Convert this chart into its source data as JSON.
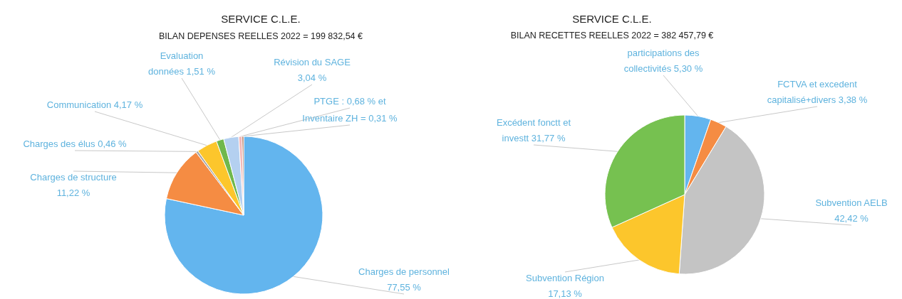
{
  "chart_data": [
    {
      "type": "pie",
      "title": "SERVICE C.L.E.",
      "subtitle": "BILAN DEPENSES REELLES 2022 = 199 832,54 €",
      "categories": [
        "Charges de personnel 77,55 %",
        "Charges de structure 11,22 %",
        "Charges des élus 0,46 %",
        "Communication 4,17 %",
        "Evaluation données 1,51 %",
        "Révision du SAGE 3,04 %",
        "PTGE : 0,68 % et",
        "Inventaire ZH = 0,31 %"
      ],
      "values": [
        77.55,
        11.22,
        0.46,
        4.17,
        1.51,
        3.04,
        0.68,
        0.31
      ],
      "colors": [
        "#63b5ee",
        "#f58c43",
        "#a5a5a5",
        "#fcc62c",
        "#70b84c",
        "#b4d0f0",
        "#f2b7b7",
        "#a0522d"
      ]
    },
    {
      "type": "pie",
      "title": "SERVICE C.L.E.",
      "subtitle": "BILAN RECETTES REELLES 2022 = 382 457,79 €",
      "categories": [
        "participations des collectivités 5,30 %",
        "FCTVA et excedent capitalisé+divers 3,38 %",
        "Subvention AELB 42,42 %",
        "Subvention Région 17,13 %",
        "Excédent fonctt et investt 31,77 %"
      ],
      "values": [
        5.3,
        3.38,
        42.42,
        17.13,
        31.77
      ],
      "colors": [
        "#63b5ee",
        "#f58c43",
        "#c4c4c4",
        "#fcc62c",
        "#76c150"
      ]
    }
  ]
}
